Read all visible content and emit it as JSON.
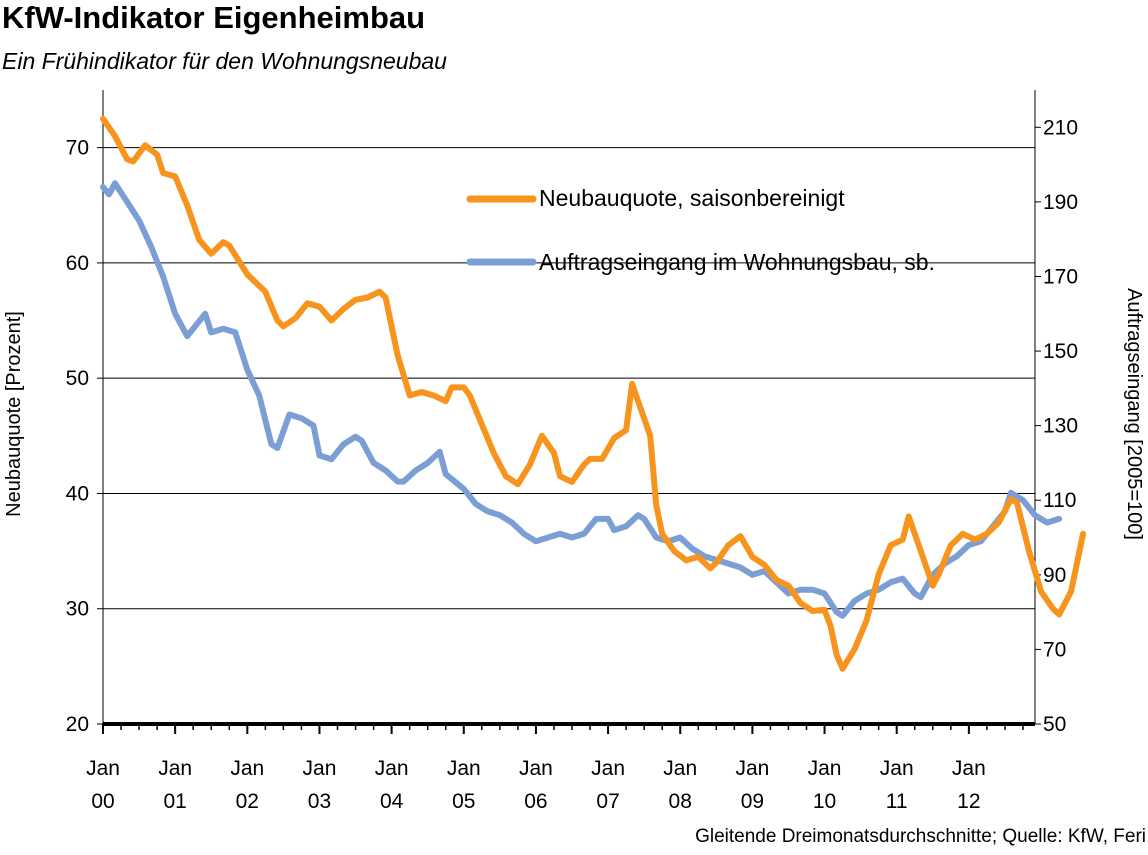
{
  "header": {
    "title": "KfW-Indikator Eigenheimbau",
    "subtitle": "Ein Frühindikator für den Wohnungsneubau"
  },
  "footer": {
    "source": "Gleitende Dreimonatsdurchschnitte; Quelle: KfW, Feri"
  },
  "colors": {
    "series_orange": "#f7941d",
    "series_blue": "#7b9fd4",
    "grid": "#000000"
  },
  "chart_data": {
    "type": "line",
    "title": "KfW-Indikator Eigenheimbau",
    "subtitle": "Ein Frühindikator für den Wohnungsneubau",
    "y_left_label": "Neubauquote [Prozent]",
    "y_right_label": "Auftragseingang [2005=100]",
    "y_left_range": [
      20,
      75
    ],
    "y_right_range": [
      50,
      220
    ],
    "y_left_ticks": [
      20,
      30,
      40,
      50,
      60,
      70
    ],
    "y_right_ticks": [
      50,
      70,
      90,
      110,
      130,
      150,
      170,
      190,
      210
    ],
    "x_range": [
      "2000-01",
      "2012-12"
    ],
    "x_ticks": [
      {
        "top": "Jan",
        "bottom": "00",
        "date": "2000-01"
      },
      {
        "top": "Jan",
        "bottom": "01",
        "date": "2001-01"
      },
      {
        "top": "Jan",
        "bottom": "02",
        "date": "2002-01"
      },
      {
        "top": "Jan",
        "bottom": "03",
        "date": "2003-01"
      },
      {
        "top": "Jan",
        "bottom": "04",
        "date": "2004-01"
      },
      {
        "top": "Jan",
        "bottom": "05",
        "date": "2005-01"
      },
      {
        "top": "Jan",
        "bottom": "06",
        "date": "2006-01"
      },
      {
        "top": "Jan",
        "bottom": "07",
        "date": "2007-01"
      },
      {
        "top": "Jan",
        "bottom": "08",
        "date": "2008-01"
      },
      {
        "top": "Jan",
        "bottom": "09",
        "date": "2009-01"
      },
      {
        "top": "Jan",
        "bottom": "10",
        "date": "2010-01"
      },
      {
        "top": "Jan",
        "bottom": "11",
        "date": "2011-01"
      },
      {
        "top": "Jan",
        "bottom": "12",
        "date": "2012-01"
      }
    ],
    "grid": "horizontal",
    "legend_position": "top-right",
    "series": [
      {
        "name": "Neubauquote, saisonbereinigt",
        "axis": "left",
        "color": "#f7941d",
        "points": [
          [
            "2000-01",
            72.5
          ],
          [
            "2000-03",
            71.0
          ],
          [
            "2000-05",
            69.0
          ],
          [
            "2000-06",
            68.8
          ],
          [
            "2000-08",
            70.2
          ],
          [
            "2000-10",
            69.4
          ],
          [
            "2000-11",
            67.8
          ],
          [
            "2001-01",
            67.5
          ],
          [
            "2001-03",
            65.0
          ],
          [
            "2001-05",
            62.0
          ],
          [
            "2001-07",
            60.8
          ],
          [
            "2001-09",
            61.8
          ],
          [
            "2001-10",
            61.5
          ],
          [
            "2002-01",
            59.0
          ],
          [
            "2002-04",
            57.5
          ],
          [
            "2002-06",
            55.0
          ],
          [
            "2002-07",
            54.5
          ],
          [
            "2002-09",
            55.2
          ],
          [
            "2002-11",
            56.5
          ],
          [
            "2003-01",
            56.2
          ],
          [
            "2003-03",
            55.0
          ],
          [
            "2003-05",
            56.0
          ],
          [
            "2003-07",
            56.8
          ],
          [
            "2003-09",
            57.0
          ],
          [
            "2003-11",
            57.5
          ],
          [
            "2003-12",
            57.0
          ],
          [
            "2004-02",
            52.0
          ],
          [
            "2004-04",
            48.5
          ],
          [
            "2004-06",
            48.8
          ],
          [
            "2004-08",
            48.5
          ],
          [
            "2004-10",
            48.0
          ],
          [
            "2004-11",
            49.2
          ],
          [
            "2005-01",
            49.2
          ],
          [
            "2005-02",
            48.5
          ],
          [
            "2005-04",
            46.0
          ],
          [
            "2005-06",
            43.5
          ],
          [
            "2005-08",
            41.5
          ],
          [
            "2005-10",
            40.8
          ],
          [
            "2005-12",
            42.5
          ],
          [
            "2006-02",
            45.0
          ],
          [
            "2006-04",
            43.5
          ],
          [
            "2006-05",
            41.5
          ],
          [
            "2006-07",
            41.0
          ],
          [
            "2006-09",
            42.5
          ],
          [
            "2006-10",
            43.0
          ],
          [
            "2006-12",
            43.0
          ],
          [
            "2007-02",
            44.8
          ],
          [
            "2007-04",
            45.5
          ],
          [
            "2007-05",
            49.5
          ],
          [
            "2007-06",
            48.0
          ],
          [
            "2007-08",
            45.0
          ],
          [
            "2007-09",
            39.0
          ],
          [
            "2007-10",
            36.5
          ],
          [
            "2007-12",
            35.0
          ],
          [
            "2008-02",
            34.2
          ],
          [
            "2008-04",
            34.5
          ],
          [
            "2008-06",
            33.5
          ],
          [
            "2008-07",
            34.0
          ],
          [
            "2008-09",
            35.5
          ],
          [
            "2008-11",
            36.3
          ],
          [
            "2009-01",
            34.5
          ],
          [
            "2009-03",
            33.8
          ],
          [
            "2009-05",
            32.5
          ],
          [
            "2009-07",
            32.0
          ],
          [
            "2009-09",
            30.5
          ],
          [
            "2009-11",
            29.8
          ],
          [
            "2010-01",
            29.9
          ],
          [
            "2010-02",
            28.5
          ],
          [
            "2010-03",
            26.0
          ],
          [
            "2010-04",
            24.8
          ],
          [
            "2010-06",
            26.5
          ],
          [
            "2010-08",
            29.0
          ],
          [
            "2010-10",
            33.0
          ],
          [
            "2010-12",
            35.5
          ],
          [
            "2011-02",
            36.0
          ],
          [
            "2011-03",
            38.0
          ],
          [
            "2011-05",
            35.0
          ],
          [
            "2011-07",
            32.0
          ],
          [
            "2011-08",
            33.0
          ],
          [
            "2011-10",
            35.5
          ],
          [
            "2011-12",
            36.5
          ],
          [
            "2012-02",
            36.0
          ],
          [
            "2012-04",
            36.5
          ],
          [
            "2012-06",
            37.5
          ],
          [
            "2012-08",
            39.5
          ],
          [
            "2012-09",
            39.2
          ],
          [
            "2012-11",
            35.0
          ],
          [
            "2013-01",
            31.5
          ],
          [
            "2013-03",
            30.0
          ],
          [
            "2013-04",
            29.5
          ],
          [
            "2013-06",
            31.5
          ],
          [
            "2013-08",
            36.5
          ]
        ]
      },
      {
        "name": "Auftragseingang im Wohnungsbau, sb.",
        "axis": "right",
        "color": "#7b9fd4",
        "points": [
          [
            "2000-01",
            194
          ],
          [
            "2000-02",
            192
          ],
          [
            "2000-03",
            195
          ],
          [
            "2000-05",
            190
          ],
          [
            "2000-07",
            185
          ],
          [
            "2000-09",
            178
          ],
          [
            "2000-11",
            170
          ],
          [
            "2001-01",
            160
          ],
          [
            "2001-03",
            154
          ],
          [
            "2001-05",
            158
          ],
          [
            "2001-06",
            160
          ],
          [
            "2001-07",
            155
          ],
          [
            "2001-09",
            156
          ],
          [
            "2001-11",
            155
          ],
          [
            "2002-01",
            145
          ],
          [
            "2002-03",
            138
          ],
          [
            "2002-05",
            125
          ],
          [
            "2002-06",
            124
          ],
          [
            "2002-08",
            133
          ],
          [
            "2002-10",
            132
          ],
          [
            "2002-12",
            130
          ],
          [
            "2003-01",
            122
          ],
          [
            "2003-03",
            121
          ],
          [
            "2003-05",
            125
          ],
          [
            "2003-07",
            127
          ],
          [
            "2003-08",
            126
          ],
          [
            "2003-10",
            120
          ],
          [
            "2003-12",
            118
          ],
          [
            "2004-02",
            115
          ],
          [
            "2004-03",
            115
          ],
          [
            "2004-05",
            118
          ],
          [
            "2004-07",
            120
          ],
          [
            "2004-09",
            123
          ],
          [
            "2004-10",
            117
          ],
          [
            "2005-01",
            113
          ],
          [
            "2005-03",
            109
          ],
          [
            "2005-05",
            107
          ],
          [
            "2005-07",
            106
          ],
          [
            "2005-09",
            104
          ],
          [
            "2005-11",
            101
          ],
          [
            "2006-01",
            99
          ],
          [
            "2006-03",
            100
          ],
          [
            "2006-05",
            101
          ],
          [
            "2006-07",
            100
          ],
          [
            "2006-09",
            101
          ],
          [
            "2006-11",
            105
          ],
          [
            "2007-01",
            105
          ],
          [
            "2007-02",
            102
          ],
          [
            "2007-04",
            103
          ],
          [
            "2007-06",
            106
          ],
          [
            "2007-07",
            105
          ],
          [
            "2007-09",
            100
          ],
          [
            "2007-11",
            99
          ],
          [
            "2008-01",
            100
          ],
          [
            "2008-03",
            97
          ],
          [
            "2008-05",
            95
          ],
          [
            "2008-07",
            94
          ],
          [
            "2008-09",
            93
          ],
          [
            "2008-11",
            92
          ],
          [
            "2009-01",
            90
          ],
          [
            "2009-03",
            91
          ],
          [
            "2009-05",
            88
          ],
          [
            "2009-07",
            85
          ],
          [
            "2009-09",
            86
          ],
          [
            "2009-11",
            86
          ],
          [
            "2010-01",
            85
          ],
          [
            "2010-03",
            80
          ],
          [
            "2010-04",
            79
          ],
          [
            "2010-06",
            83
          ],
          [
            "2010-08",
            85
          ],
          [
            "2010-10",
            86
          ],
          [
            "2010-12",
            88
          ],
          [
            "2011-02",
            89
          ],
          [
            "2011-04",
            85
          ],
          [
            "2011-05",
            84
          ],
          [
            "2011-07",
            90
          ],
          [
            "2011-09",
            93
          ],
          [
            "2011-11",
            95
          ],
          [
            "2012-01",
            98
          ],
          [
            "2012-03",
            99
          ],
          [
            "2012-05",
            103
          ],
          [
            "2012-07",
            107
          ],
          [
            "2012-08",
            112
          ],
          [
            "2012-10",
            110
          ],
          [
            "2012-12",
            106
          ],
          [
            "2013-02",
            104
          ],
          [
            "2013-04",
            105
          ]
        ]
      }
    ]
  }
}
